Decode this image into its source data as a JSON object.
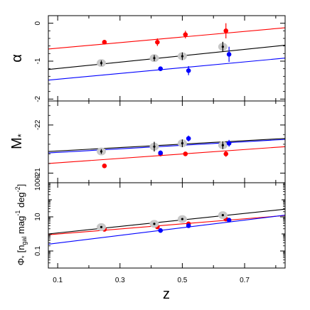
{
  "chart_data": [
    {
      "type": "scatter",
      "panel": "top",
      "ylabel": "α",
      "xlim": [
        0.07,
        0.83
      ],
      "ylim": [
        -2.05,
        0.2
      ],
      "yticks": [
        0,
        -1,
        -2
      ],
      "ytick_labels": [
        "0",
        "-1",
        "-2"
      ],
      "y_inverted": false,
      "series": [
        {
          "color": "red",
          "x": [
            0.25,
            0.42,
            0.51,
            0.64
          ],
          "y": [
            -0.5,
            -0.5,
            -0.3,
            -0.2
          ],
          "yerr": [
            0.05,
            0.1,
            0.1,
            0.2
          ],
          "fit": {
            "x": [
              0.07,
              0.83
            ],
            "y": [
              -0.68,
              -0.12
            ]
          }
        },
        {
          "color": "gray",
          "x": [
            0.24,
            0.41,
            0.5,
            0.63
          ],
          "y": [
            -1.05,
            -0.92,
            -0.87,
            -0.62
          ],
          "yerr": [
            0.07,
            0.08,
            0.1,
            0.13
          ],
          "fit": {
            "x": [
              0.07,
              0.83
            ],
            "y": [
              -1.22,
              -0.58
            ]
          }
        },
        {
          "color": "blue",
          "x": [
            0.43,
            0.52,
            0.65
          ],
          "y": [
            -1.2,
            -1.25,
            -0.82
          ],
          "yerr": [
            0.04,
            0.12,
            0.2
          ],
          "fit": {
            "x": [
              0.07,
              0.83
            ],
            "y": [
              -1.5,
              -0.92
            ]
          }
        }
      ]
    },
    {
      "type": "scatter",
      "panel": "middle",
      "ylabel": "M",
      "ylabel_sub": "*",
      "xlim": [
        0.07,
        0.83
      ],
      "ylim": [
        -22.5,
        -20.8
      ],
      "yticks": [
        -21,
        -22
      ],
      "ytick_labels": [
        "-21",
        "-22"
      ],
      "y_inverted": true,
      "series": [
        {
          "color": "red",
          "x": [
            0.25,
            0.43,
            0.51,
            0.64
          ],
          "y": [
            -21.15,
            -21.4,
            -21.4,
            -21.4
          ],
          "yerr": [
            0.03,
            0.05,
            0.04,
            0.06
          ],
          "fit": {
            "x": [
              0.07,
              0.83
            ],
            "y": [
              -21.2,
              -21.55
            ]
          }
        },
        {
          "color": "gray",
          "x": [
            0.24,
            0.41,
            0.5,
            0.63
          ],
          "y": [
            -21.45,
            -21.55,
            -21.62,
            -21.58
          ],
          "yerr": [
            0.05,
            0.1,
            0.08,
            0.08
          ],
          "fit": {
            "x": [
              0.07,
              0.83
            ],
            "y": [
              -21.45,
              -21.72
            ]
          }
        },
        {
          "color": "blue",
          "x": [
            0.43,
            0.52,
            0.65
          ],
          "y": [
            -21.42,
            -21.72,
            -21.62
          ],
          "yerr": [
            0.05,
            0.06,
            0.07
          ],
          "fit": {
            "x": [
              0.07,
              0.83
            ],
            "y": [
              -21.42,
              -21.7
            ]
          }
        }
      ]
    },
    {
      "type": "scatter",
      "panel": "bottom",
      "ylabel": "Φ",
      "ylabel_sub": "*",
      "ylabel_units": "[n",
      "ylabel_units_sub": "gal",
      "ylabel_units_rest": " mag",
      "ylabel_units_sup1": "-1",
      "ylabel_units_rest2": " deg",
      "ylabel_units_sup2": "-2",
      "ylabel_units_end": "]",
      "xlabel": "z",
      "xlim": [
        0.07,
        0.83
      ],
      "ylim_log10": [
        -2,
        3
      ],
      "yticks_log10": [
        3,
        1,
        -1
      ],
      "ytick_labels": [
        "1000",
        "10",
        "0.1"
      ],
      "xticks": [
        0.1,
        0.3,
        0.5,
        0.7
      ],
      "xtick_labels": [
        "0.1",
        "0.3",
        "0.5",
        "0.7"
      ],
      "series": [
        {
          "color": "red",
          "x": [
            0.25,
            0.42,
            0.52,
            0.64
          ],
          "y_log10": [
            0.27,
            0.41,
            0.59,
            0.87
          ],
          "fit": {
            "x": [
              0.07,
              0.83
            ],
            "y_log10": [
              -0.05,
              1.08
            ]
          }
        },
        {
          "color": "gray",
          "x": [
            0.24,
            0.41,
            0.5,
            0.63
          ],
          "y_log10": [
            0.4,
            0.59,
            0.87,
            1.1
          ],
          "fit": {
            "x": [
              0.07,
              0.83
            ],
            "y_log10": [
              0.0,
              1.45
            ]
          }
        },
        {
          "color": "blue",
          "x": [
            0.43,
            0.52,
            0.65
          ],
          "y_log10": [
            0.2,
            0.48,
            0.81
          ],
          "fit": {
            "x": [
              0.07,
              0.83
            ],
            "y_log10": [
              -0.6,
              1.1
            ]
          }
        }
      ]
    }
  ],
  "colors": {
    "red": "#ff0000",
    "gray": "#000000",
    "blue": "#0000ff",
    "halo": "#c8c8c8"
  }
}
